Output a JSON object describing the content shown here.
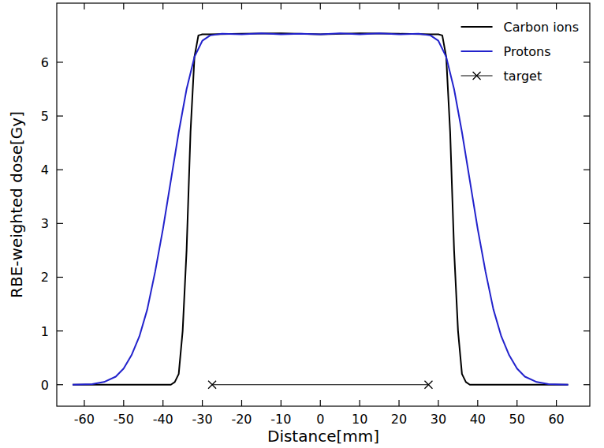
{
  "chart_data": {
    "type": "line",
    "x_label": "Distance[mm]",
    "y_label": "RBE-weighted dose[Gy]",
    "xlim": [
      -67,
      68.5
    ],
    "ylim": [
      -0.4,
      7.1
    ],
    "xticks": [
      -60,
      -50,
      -40,
      -30,
      -20,
      -10,
      0,
      10,
      20,
      30,
      40,
      50,
      60
    ],
    "yticks": [
      0,
      1,
      2,
      3,
      4,
      5,
      6
    ],
    "grid": false,
    "legend": "upper right",
    "series": [
      {
        "name": "Carbon ions",
        "color": "#000000",
        "line_style": "solid",
        "x": [
          -63,
          -40,
          -38,
          -37,
          -36,
          -35,
          -34,
          -33,
          -32,
          -31,
          -30,
          -28,
          -20,
          -10,
          0,
          10,
          20,
          28,
          30,
          31,
          32,
          33,
          34,
          35,
          36,
          37,
          38,
          40,
          63
        ],
        "values": [
          0,
          0,
          0,
          0.05,
          0.2,
          1,
          2.5,
          4.7,
          6.1,
          6.5,
          6.52,
          6.52,
          6.53,
          6.54,
          6.52,
          6.54,
          6.53,
          6.52,
          6.52,
          6.5,
          6.1,
          4.7,
          2.5,
          1,
          0.2,
          0.05,
          0,
          0,
          0
        ]
      },
      {
        "name": "Protons",
        "color": "#2222cc",
        "line_style": "solid",
        "x": [
          -63,
          -58,
          -55,
          -52,
          -50,
          -48,
          -46,
          -44,
          -42,
          -40,
          -38,
          -36,
          -34,
          -32,
          -30,
          -28,
          -25,
          -20,
          -15,
          -10,
          -5,
          0,
          5,
          10,
          15,
          20,
          25,
          28,
          30,
          32,
          34,
          36,
          38,
          40,
          42,
          44,
          46,
          48,
          50,
          52,
          55,
          58,
          63
        ],
        "values": [
          0,
          0.01,
          0.05,
          0.15,
          0.3,
          0.55,
          0.9,
          1.4,
          2.1,
          2.9,
          3.8,
          4.7,
          5.5,
          6.1,
          6.4,
          6.5,
          6.53,
          6.52,
          6.54,
          6.52,
          6.53,
          6.52,
          6.54,
          6.52,
          6.54,
          6.52,
          6.53,
          6.5,
          6.4,
          6.1,
          5.5,
          4.7,
          3.8,
          2.9,
          2.1,
          1.4,
          0.9,
          0.55,
          0.3,
          0.15,
          0.05,
          0.01,
          0
        ]
      },
      {
        "name": "target",
        "color": "#000000",
        "line_style": "solid",
        "marker": "x",
        "x": [
          -27.5,
          27.5
        ],
        "values": [
          0,
          0
        ]
      }
    ]
  }
}
